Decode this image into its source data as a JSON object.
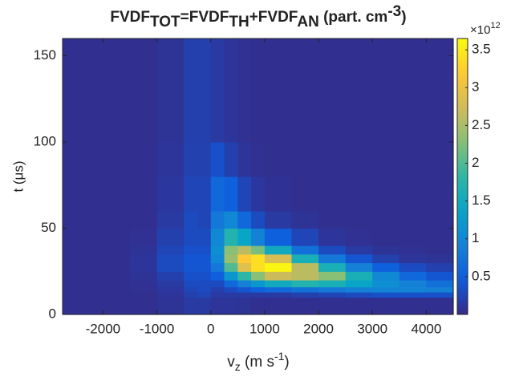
{
  "chart_data": {
    "type": "heatmap",
    "title": [
      "FVDF",
      "TOT",
      "=FVDF",
      "TH",
      "+FVDF",
      "AN",
      " (part. cm",
      "-3",
      ")"
    ],
    "xlabel": [
      "v",
      "z",
      " (m s",
      "-1",
      ")"
    ],
    "ylabel": "t (μs)",
    "colorbar_exponent": [
      "×10",
      "12"
    ],
    "colormap": "parula",
    "xlim": [
      -2750,
      4500
    ],
    "ylim": [
      0,
      160
    ],
    "xticks": [
      -2000,
      -1000,
      0,
      1000,
      2000,
      3000,
      4000
    ],
    "yticks": [
      0,
      50,
      100,
      150
    ],
    "clim": [
      0,
      3.65
    ],
    "cticks": [
      0.5,
      1,
      1.5,
      2,
      2.5,
      3,
      3.5
    ],
    "x_edges": [
      -2750,
      -1500,
      -1000,
      -500,
      -250,
      0,
      250,
      500,
      750,
      1000,
      1500,
      2000,
      2500,
      3000,
      3500,
      4000,
      4500
    ],
    "y_edges": [
      0,
      10,
      13,
      16,
      20,
      25,
      30,
      35,
      40,
      50,
      60,
      80,
      100,
      160
    ],
    "z": [
      [
        0.05,
        0.05,
        0.08,
        0.15,
        0.15,
        0.1,
        0.1,
        0.08,
        0.05,
        0.05,
        0.05,
        0.05,
        0.05,
        0.05,
        0.05,
        0.05
      ],
      [
        0.05,
        0.05,
        0.1,
        0.2,
        0.25,
        0.15,
        0.15,
        0.15,
        0.15,
        0.15,
        0.2,
        0.25,
        0.3,
        0.35,
        0.35,
        0.35
      ],
      [
        0.05,
        0.06,
        0.12,
        0.25,
        0.3,
        0.2,
        0.3,
        0.4,
        0.5,
        0.6,
        0.7,
        0.8,
        0.9,
        0.95,
        0.95,
        0.9
      ],
      [
        0.05,
        0.06,
        0.15,
        0.3,
        0.3,
        0.3,
        0.6,
        0.9,
        1.2,
        1.5,
        1.7,
        1.6,
        1.4,
        1.1,
        0.9,
        0.7
      ],
      [
        0.05,
        0.08,
        0.2,
        0.35,
        0.35,
        0.5,
        1.2,
        1.8,
        2.3,
        2.7,
        2.6,
        2.3,
        1.6,
        1.0,
        0.6,
        0.4
      ],
      [
        0.05,
        0.1,
        0.3,
        0.4,
        0.4,
        0.8,
        2.0,
        2.9,
        3.4,
        3.6,
        2.6,
        1.6,
        0.9,
        0.5,
        0.3,
        0.2
      ],
      [
        0.05,
        0.1,
        0.3,
        0.4,
        0.4,
        1.0,
        2.4,
        3.2,
        3.4,
        2.8,
        1.6,
        0.8,
        0.4,
        0.2,
        0.1,
        0.08
      ],
      [
        0.05,
        0.08,
        0.25,
        0.35,
        0.35,
        1.1,
        2.3,
        2.6,
        2.2,
        1.5,
        0.7,
        0.3,
        0.15,
        0.08,
        0.06,
        0.05
      ],
      [
        0.05,
        0.06,
        0.2,
        0.3,
        0.3,
        1.0,
        1.7,
        1.4,
        0.9,
        0.5,
        0.25,
        0.1,
        0.06,
        0.05,
        0.05,
        0.05
      ],
      [
        0.05,
        0.05,
        0.15,
        0.3,
        0.25,
        0.8,
        1.0,
        0.6,
        0.3,
        0.15,
        0.08,
        0.05,
        0.05,
        0.05,
        0.05,
        0.05
      ],
      [
        0.05,
        0.05,
        0.12,
        0.25,
        0.25,
        0.6,
        0.5,
        0.25,
        0.12,
        0.07,
        0.05,
        0.05,
        0.05,
        0.05,
        0.05,
        0.05
      ],
      [
        0.05,
        0.05,
        0.1,
        0.22,
        0.22,
        0.35,
        0.2,
        0.1,
        0.06,
        0.05,
        0.05,
        0.05,
        0.05,
        0.05,
        0.05,
        0.05
      ],
      [
        0.05,
        0.05,
        0.08,
        0.2,
        0.2,
        0.15,
        0.1,
        0.06,
        0.05,
        0.05,
        0.05,
        0.05,
        0.05,
        0.05,
        0.05,
        0.05
      ]
    ]
  }
}
